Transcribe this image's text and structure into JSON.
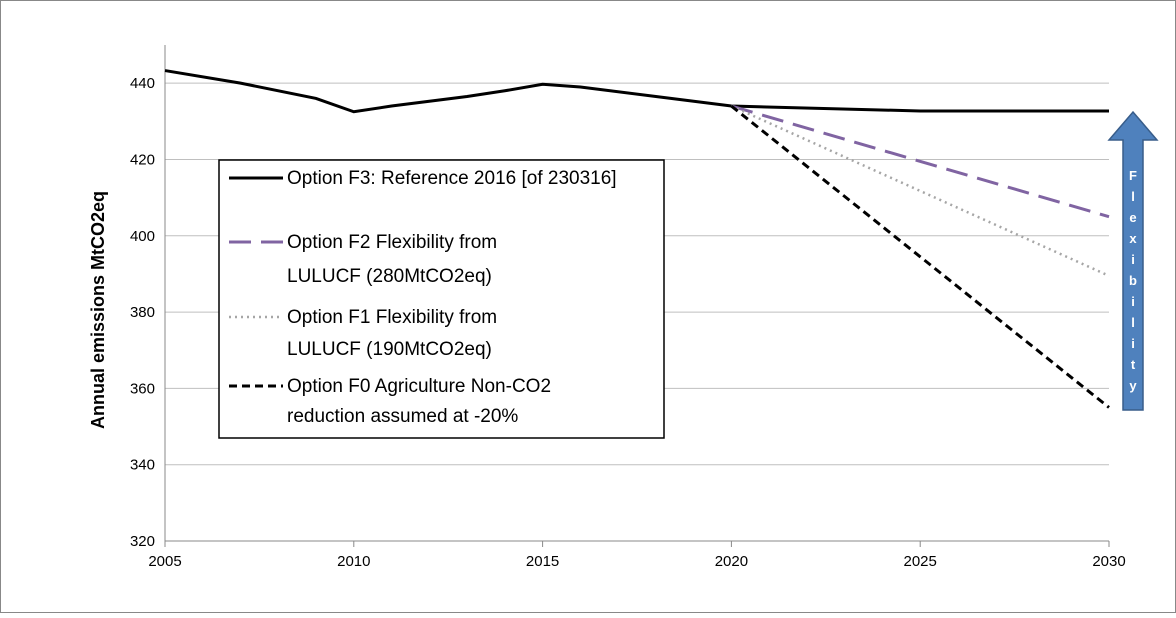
{
  "chart_data": {
    "type": "line",
    "y_label": "Annual emissions MtCO2eq",
    "annotation": "Flexibility",
    "xlim": [
      2005,
      2030
    ],
    "xticks": [
      2005,
      2010,
      2015,
      2020,
      2025,
      2030
    ],
    "ylim": [
      320,
      450
    ],
    "yticks": [
      320,
      340,
      360,
      380,
      400,
      420,
      440
    ],
    "grid": true,
    "legend": "left",
    "series": [
      {
        "name": "Option F3: Reference 2016 [of 230316]",
        "color": "#000000",
        "dash": "solid",
        "width": 3,
        "x": [
          2005,
          2007,
          2009,
          2010,
          2011,
          2013,
          2014,
          2015,
          2016,
          2018,
          2020,
          2025,
          2030
        ],
        "values": [
          443.3,
          440,
          436,
          432.5,
          434,
          436.5,
          438,
          439.7,
          439,
          436.5,
          434,
          432.7,
          432.7
        ]
      },
      {
        "name": "Option F2 Flexibility from LULUCF (280MtCO2eq)",
        "color": "#8064a2",
        "dash": "long",
        "width": 3,
        "x": [
          2020,
          2030
        ],
        "values": [
          434,
          405
        ]
      },
      {
        "name": "Option F1 Flexibility from LULUCF (190MtCO2eq)",
        "color": "#a6a6a6",
        "dash": "dot",
        "width": 2.5,
        "x": [
          2020,
          2030
        ],
        "values": [
          434,
          389.5
        ]
      },
      {
        "name": "Option F0 Agriculture Non-CO2 reduction assumed at -20%",
        "color": "#000000",
        "dash": "short",
        "width": 3,
        "x": [
          2020,
          2030
        ],
        "values": [
          434,
          355
        ]
      }
    ]
  }
}
